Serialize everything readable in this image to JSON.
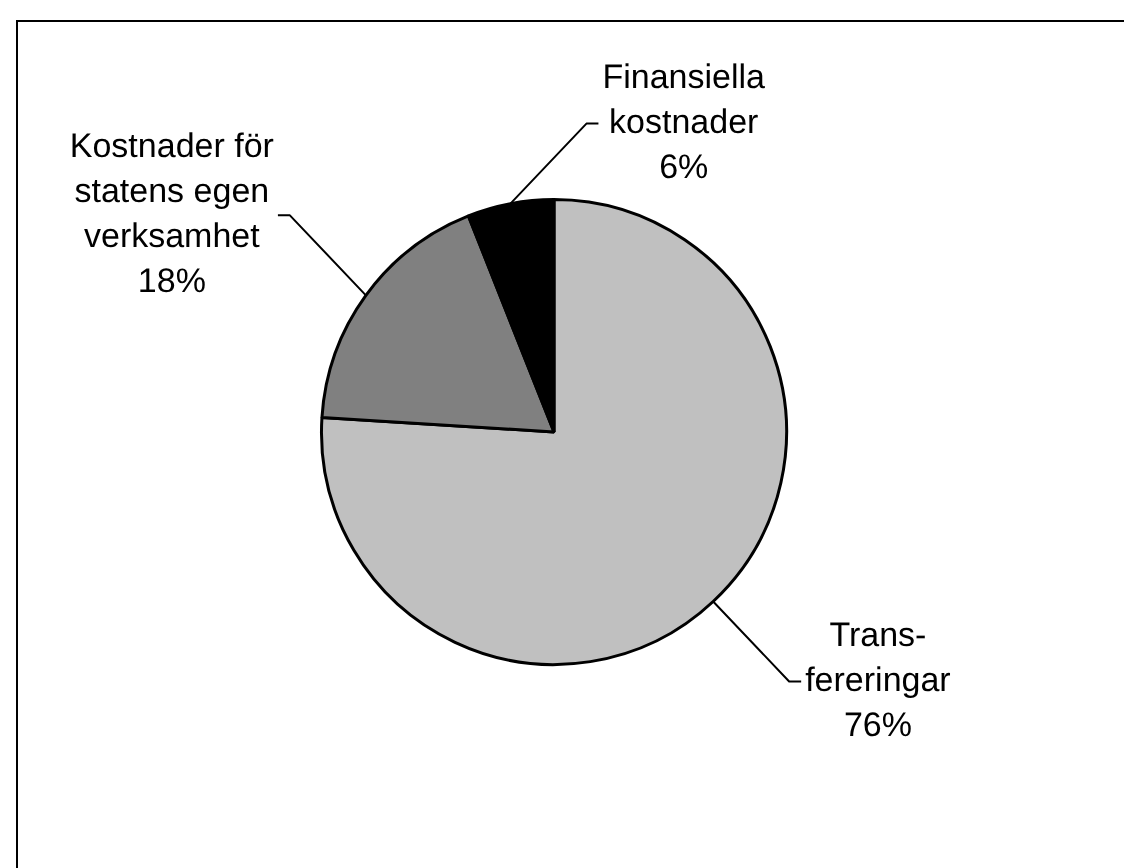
{
  "chart_data": {
    "type": "pie",
    "categories": [
      "Trans-fereringar",
      "Kostnader för statens egen verksamhet",
      "Finansiella kostnader"
    ],
    "values": [
      76,
      18,
      6
    ],
    "colors": [
      "#c0c0c0",
      "#808080",
      "#000000"
    ],
    "value_labels": [
      "76%",
      "18%",
      "6%"
    ],
    "legend": false
  }
}
